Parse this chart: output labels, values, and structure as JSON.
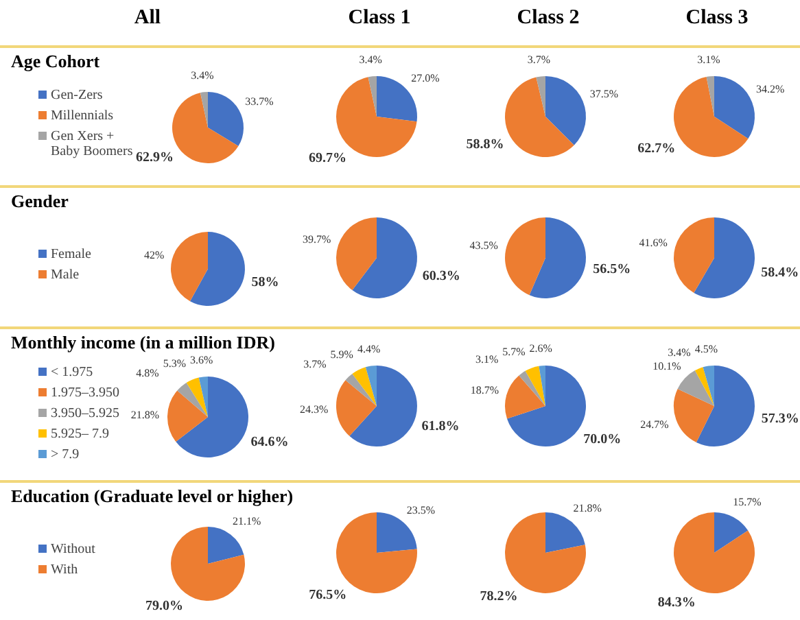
{
  "chart_data": [
    {
      "type": "pie",
      "title": "All",
      "legend_title": "Age Cohort",
      "legend": "left",
      "categories": [
        "Gen-Zers",
        "Millennials",
        "Gen Xers + Baby Boomers"
      ],
      "values": [
        33.7,
        62.9,
        3.4
      ],
      "value_labels": [
        "33.7%",
        "62.9%",
        "3.4%"
      ],
      "colors": [
        "#4472c4",
        "#ed7d31",
        "#a5a5a5"
      ]
    },
    {
      "type": "pie",
      "title": "Class 1",
      "categories": [
        null,
        null,
        null
      ],
      "values": [
        27.0,
        69.7,
        3.4
      ],
      "value_labels": [
        "27.0%",
        "69.7%",
        "3.4%"
      ],
      "colors": [
        "#4472c4",
        "#ed7d31",
        "#a5a5a5"
      ]
    },
    {
      "type": "pie",
      "title": "Class 2",
      "categories": [
        null,
        null,
        null
      ],
      "values": [
        37.5,
        58.8,
        3.7
      ],
      "value_labels": [
        "37.5%",
        "58.8%",
        "3.7%"
      ],
      "colors": [
        "#4472c4",
        "#ed7d31",
        "#a5a5a5"
      ]
    },
    {
      "type": "pie",
      "title": "Class 3",
      "categories": [
        null,
        null,
        null
      ],
      "values": [
        34.2,
        62.7,
        3.1
      ],
      "value_labels": [
        "34.2%",
        "62.7%",
        "3.1%"
      ],
      "colors": [
        "#4472c4",
        "#ed7d31",
        "#a5a5a5"
      ]
    },
    {
      "type": "pie",
      "legend_title": "Gender",
      "legend": "left",
      "categories": [
        "Female",
        "Male"
      ],
      "values": [
        58,
        42
      ],
      "value_labels": [
        "58%",
        "42%"
      ],
      "colors": [
        "#4472c4",
        "#ed7d31"
      ]
    },
    {
      "type": "pie",
      "categories": [
        null,
        null
      ],
      "values": [
        60.3,
        39.7
      ],
      "value_labels": [
        "60.3%",
        "39.7%"
      ],
      "colors": [
        "#4472c4",
        "#ed7d31"
      ]
    },
    {
      "type": "pie",
      "categories": [
        null,
        null
      ],
      "values": [
        56.5,
        43.5
      ],
      "value_labels": [
        "56.5%",
        "43.5%"
      ],
      "colors": [
        "#4472c4",
        "#ed7d31"
      ]
    },
    {
      "type": "pie",
      "categories": [
        null,
        null
      ],
      "values": [
        58.4,
        41.6
      ],
      "value_labels": [
        "58.4%",
        "41.6%"
      ],
      "colors": [
        "#4472c4",
        "#ed7d31"
      ]
    },
    {
      "type": "pie",
      "legend_title": "Monthly income (in a million IDR)",
      "legend": "left",
      "categories": [
        "< 1.975",
        "1.975–3.950",
        "3.950–5.925",
        "5.925– 7.9",
        "> 7.9"
      ],
      "values": [
        64.6,
        21.8,
        4.8,
        5.3,
        3.6
      ],
      "value_labels": [
        "64.6%",
        "21.8%",
        "4.8%",
        "5.3%",
        "3.6%"
      ],
      "colors": [
        "#4472c4",
        "#ed7d31",
        "#a5a5a5",
        "#ffc000",
        "#5b9bd5"
      ]
    },
    {
      "type": "pie",
      "categories": [
        null,
        null,
        null,
        null,
        null
      ],
      "values": [
        61.8,
        24.3,
        3.7,
        5.9,
        4.4
      ],
      "value_labels": [
        "61.8%",
        "24.3%",
        "3.7%",
        "5.9%",
        "4.4%"
      ],
      "colors": [
        "#4472c4",
        "#ed7d31",
        "#a5a5a5",
        "#ffc000",
        "#5b9bd5"
      ]
    },
    {
      "type": "pie",
      "categories": [
        null,
        null,
        null,
        null,
        null
      ],
      "values": [
        70.0,
        18.7,
        3.1,
        5.7,
        2.6
      ],
      "value_labels": [
        "70.0%",
        "18.7%",
        "3.1%",
        "5.7%",
        "2.6%"
      ],
      "colors": [
        "#4472c4",
        "#ed7d31",
        "#a5a5a5",
        "#ffc000",
        "#5b9bd5"
      ]
    },
    {
      "type": "pie",
      "categories": [
        null,
        null,
        null,
        null,
        null
      ],
      "values": [
        57.3,
        24.7,
        10.1,
        3.4,
        4.5
      ],
      "value_labels": [
        "57.3%",
        "24.7%",
        "10.1%",
        "3.4%",
        "4.5%"
      ],
      "colors": [
        "#4472c4",
        "#ed7d31",
        "#a5a5a5",
        "#ffc000",
        "#5b9bd5"
      ]
    },
    {
      "type": "pie",
      "legend_title": "Education (Graduate level or higher)",
      "legend": "left",
      "categories": [
        "Without",
        "With"
      ],
      "values": [
        21.1,
        79.0
      ],
      "value_labels": [
        "21.1%",
        "79.0%"
      ],
      "colors": [
        "#4472c4",
        "#ed7d31"
      ]
    },
    {
      "type": "pie",
      "categories": [
        null,
        null
      ],
      "values": [
        23.5,
        76.5
      ],
      "value_labels": [
        "23.5%",
        "76.5%"
      ],
      "colors": [
        "#4472c4",
        "#ed7d31"
      ]
    },
    {
      "type": "pie",
      "categories": [
        null,
        null
      ],
      "values": [
        21.8,
        78.2
      ],
      "value_labels": [
        "21.8%",
        "78.2%"
      ],
      "colors": [
        "#4472c4",
        "#ed7d31"
      ]
    },
    {
      "type": "pie",
      "categories": [
        null,
        null
      ],
      "values": [
        15.7,
        84.3
      ],
      "value_labels": [
        "15.7%",
        "84.3%"
      ],
      "colors": [
        "#4472c4",
        "#ed7d31"
      ]
    }
  ]
}
